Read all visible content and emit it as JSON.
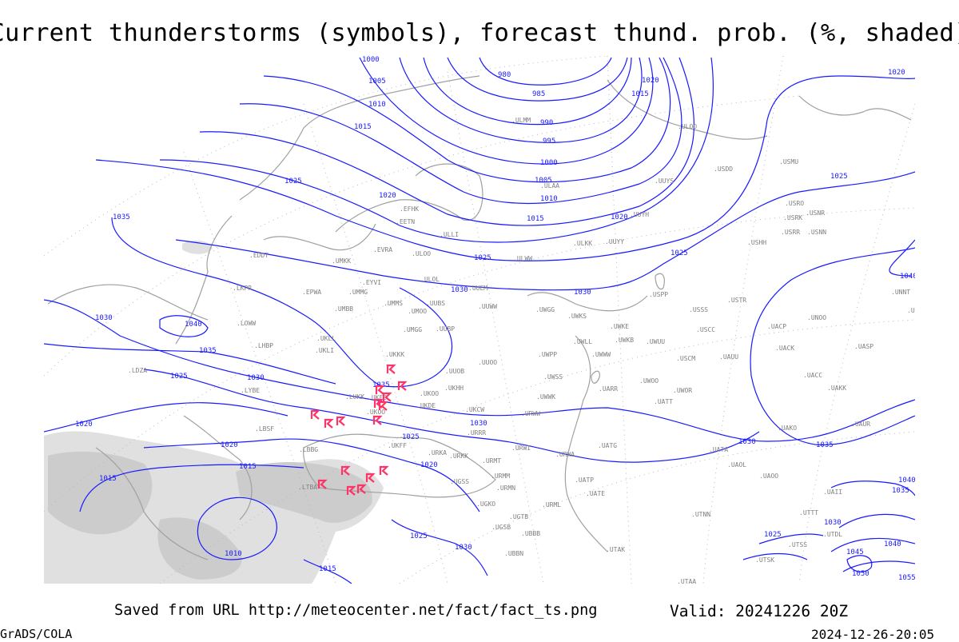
{
  "title": "Current thunderstorms (symbols), forecast thund. prob. (%, shaded)",
  "footer": {
    "saved_from": "Saved from URL http://meteocenter.net/fact/fact_ts.png",
    "valid": "Valid: 20241226 20Z",
    "software": "GrADS/COLA",
    "generated": "2024-12-26-20:05"
  },
  "colors": {
    "isobar": "#1a1aff",
    "thunderstorm_symbol": "#ff3366",
    "probability_shade_light": "#e0e0e0",
    "probability_shade_dark": "#cccccc",
    "coastline": "#a0a0a0",
    "station_label": "#808080"
  },
  "isobar_labels": [
    "1000",
    "980",
    "985",
    "990",
    "995",
    "1000",
    "1005",
    "1005",
    "1010",
    "1010",
    "1015",
    "1015",
    "1020",
    "1020",
    "1025",
    "1025",
    "1025",
    "1030",
    "1030",
    "1030",
    "1030",
    "1030",
    "1030",
    "1035",
    "1035",
    "1035",
    "1035",
    "1040",
    "1025",
    "1025",
    "1025",
    "1020",
    "1020",
    "1020",
    "1020",
    "1020",
    "1015",
    "1015",
    "1015",
    "1010",
    "1015",
    "1030",
    "1025",
    "1040",
    "1035",
    "1030",
    "1045",
    "1040",
    "1050",
    "1055",
    "1040",
    "1025"
  ],
  "stations": [
    "ULMM",
    "ULOO",
    "ULAA",
    "USDD",
    "USMU",
    "UUYS",
    "EFHK",
    "EETN",
    "ULLI",
    "UUYH",
    "USRO",
    "USRK",
    "USNR",
    "USRR",
    "USNN",
    "ULKK",
    "UUYY",
    "USHH",
    "EVRA",
    "ULOO",
    "ULWW",
    "UMKK",
    "EDDT",
    "EYVI",
    "ULOL",
    "UUEM",
    "EPWA",
    "UMMG",
    "LKPR",
    "UMMS",
    "UMOO",
    "UUBS",
    "UUWW",
    "UWGG",
    "USPP",
    "USSS",
    "USTR",
    "UNNT",
    "UNBB",
    "UWKS",
    "UMBB",
    "LOWW",
    "UKLL",
    "UKLI",
    "UMGG",
    "UUBP",
    "UWKE",
    "UWLL",
    "UWKB",
    "UWUU",
    "USCC",
    "UACP",
    "UNOO",
    "LHBP",
    "UKKK",
    "UUOO",
    "UWPP",
    "UWWW",
    "USCM",
    "UAUU",
    "UACK",
    "UASP",
    "LDZA",
    "UUOB",
    "UWSS",
    "UWOO",
    "UWOR",
    "UATT",
    "UARR",
    "UAKK",
    "UACC",
    "LYBE",
    "LUKK",
    "UKOO",
    "UKHH",
    "UKDE",
    "URWW",
    "UKCW",
    "UWWK",
    "LBSF",
    "URRR",
    "UKFF",
    "URKA",
    "URKK",
    "URWI",
    "URWA",
    "UATG",
    "UATA",
    "UAOL",
    "UAOO",
    "UAKO",
    "LBBG",
    "URMT",
    "URMM",
    "URMN",
    "UGSS",
    "UATP",
    "UATE",
    "UGKO",
    "URML",
    "UTNN",
    "LTBA",
    "UGTB",
    "UGSB",
    "UBBB",
    "UTAK",
    "UBBN",
    "UTDL",
    "UTTT",
    "UTSS",
    "UTSK",
    "UTAA",
    "UKFB",
    "UKOO",
    "UAII",
    "UAUR"
  ],
  "thunderstorm_count": 16
}
